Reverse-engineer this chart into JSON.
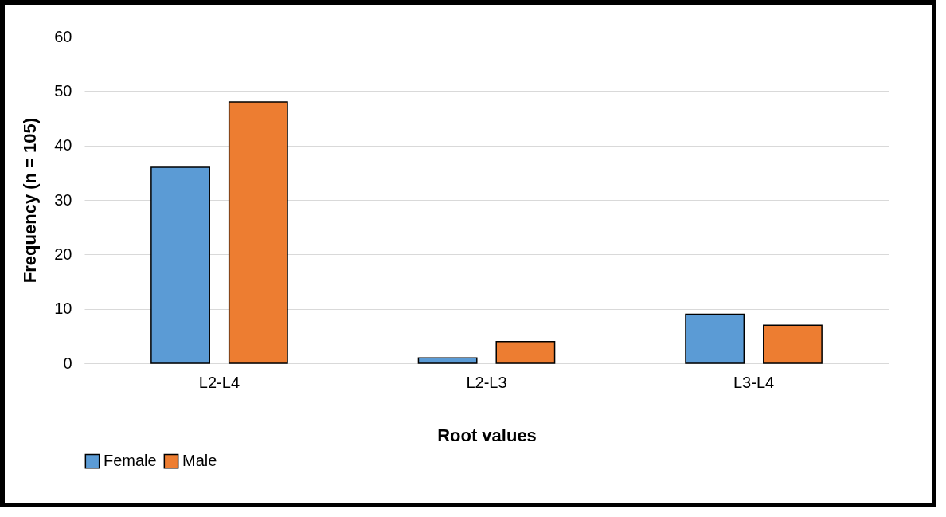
{
  "chart_data": {
    "type": "bar",
    "xlabel": "Root values",
    "ylabel": "Frequency (n = 105)",
    "categories": [
      "L2-L4",
      "L2-L3",
      "L3-L4"
    ],
    "series": [
      {
        "name": "Female",
        "color": "#5b9bd5",
        "values": [
          36,
          1,
          9
        ]
      },
      {
        "name": "Male",
        "color": "#ed7d31",
        "values": [
          48,
          4,
          7
        ]
      }
    ],
    "ylim": [
      0,
      60
    ],
    "yticks": [
      0,
      10,
      20,
      30,
      40,
      50,
      60
    ],
    "grid": "y",
    "legend": "bottom"
  }
}
